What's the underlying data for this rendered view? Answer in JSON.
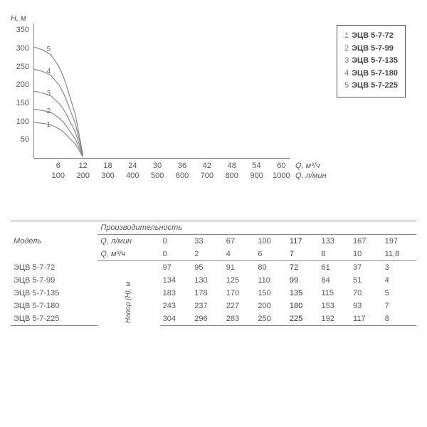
{
  "chart": {
    "type": "line",
    "y_axis": {
      "label": "H, м",
      "ticks": [
        50,
        100,
        150,
        200,
        250,
        300,
        350
      ],
      "min": 0,
      "max": 370,
      "label_fontsize": 11,
      "color": "#555"
    },
    "x_axis": {
      "ticks_top": [
        6,
        12,
        18,
        24,
        30,
        36,
        42,
        48,
        54,
        60
      ],
      "ticks_bot": [
        100,
        200,
        300,
        400,
        500,
        600,
        700,
        800,
        900,
        1000
      ],
      "label_top": "Q, м³/ч",
      "label_bot": "Q, л/мин",
      "min": 0,
      "max": 62
    },
    "curves": [
      {
        "num": "1",
        "name": "ЭЦВ 5-7-72",
        "pts": [
          [
            0,
            97
          ],
          [
            2,
            95
          ],
          [
            4,
            91
          ],
          [
            6,
            80
          ],
          [
            7,
            72
          ],
          [
            8,
            61
          ],
          [
            10,
            37
          ],
          [
            11.8,
            3
          ]
        ]
      },
      {
        "num": "2",
        "name": "ЭЦВ 5-7-99",
        "pts": [
          [
            0,
            134
          ],
          [
            2,
            130
          ],
          [
            4,
            125
          ],
          [
            6,
            110
          ],
          [
            7,
            99
          ],
          [
            8,
            84
          ],
          [
            10,
            51
          ],
          [
            11.8,
            4
          ]
        ]
      },
      {
        "num": "3",
        "name": "ЭЦВ 5-7-135",
        "pts": [
          [
            0,
            183
          ],
          [
            2,
            178
          ],
          [
            4,
            170
          ],
          [
            6,
            150
          ],
          [
            7,
            135
          ],
          [
            8,
            115
          ],
          [
            10,
            70
          ],
          [
            11.8,
            5
          ]
        ]
      },
      {
        "num": "4",
        "name": "ЭЦВ 5-7-180",
        "pts": [
          [
            0,
            243
          ],
          [
            2,
            237
          ],
          [
            4,
            227
          ],
          [
            6,
            200
          ],
          [
            7,
            180
          ],
          [
            8,
            153
          ],
          [
            10,
            93
          ],
          [
            11.8,
            7
          ]
        ]
      },
      {
        "num": "5",
        "name": "ЭЦВ 5-7-225",
        "pts": [
          [
            0,
            304
          ],
          [
            2,
            296
          ],
          [
            4,
            283
          ],
          [
            6,
            250
          ],
          [
            7,
            225
          ],
          [
            8,
            192
          ],
          [
            10,
            117
          ],
          [
            11.8,
            8
          ]
        ]
      }
    ],
    "curve_stroke": "#888",
    "curve_width": 1.2,
    "background": "#ffffff"
  },
  "table": {
    "model_header": "Модель",
    "perf_header": "Производительность",
    "q_lmin_label": "Q, л/мин",
    "q_m3h_label": "Q, м³/ч",
    "head_label": "Напор (H), м",
    "q_lmin": [
      "0",
      "33",
      "67",
      "100",
      "117",
      "133",
      "167",
      "197"
    ],
    "q_m3h": [
      "0",
      "2",
      "4",
      "6",
      "7",
      "8",
      "10",
      "11,8"
    ],
    "bold_col": 4,
    "rows": [
      {
        "model": "ЭЦВ 5-7-72",
        "vals": [
          "97",
          "95",
          "91",
          "80",
          "72",
          "61",
          "37",
          "3"
        ]
      },
      {
        "model": "ЭЦВ 5-7-99",
        "vals": [
          "134",
          "130",
          "125",
          "110",
          "99",
          "84",
          "51",
          "4"
        ]
      },
      {
        "model": "ЭЦВ 5-7-135",
        "vals": [
          "183",
          "178",
          "170",
          "150",
          "135",
          "115",
          "70",
          "5"
        ]
      },
      {
        "model": "ЭЦВ 5-7-180",
        "vals": [
          "243",
          "237",
          "227",
          "200",
          "180",
          "153",
          "93",
          "7"
        ]
      },
      {
        "model": "ЭЦВ 5-7-225",
        "vals": [
          "304",
          "296",
          "283",
          "250",
          "225",
          "192",
          "117",
          "8"
        ]
      }
    ]
  }
}
